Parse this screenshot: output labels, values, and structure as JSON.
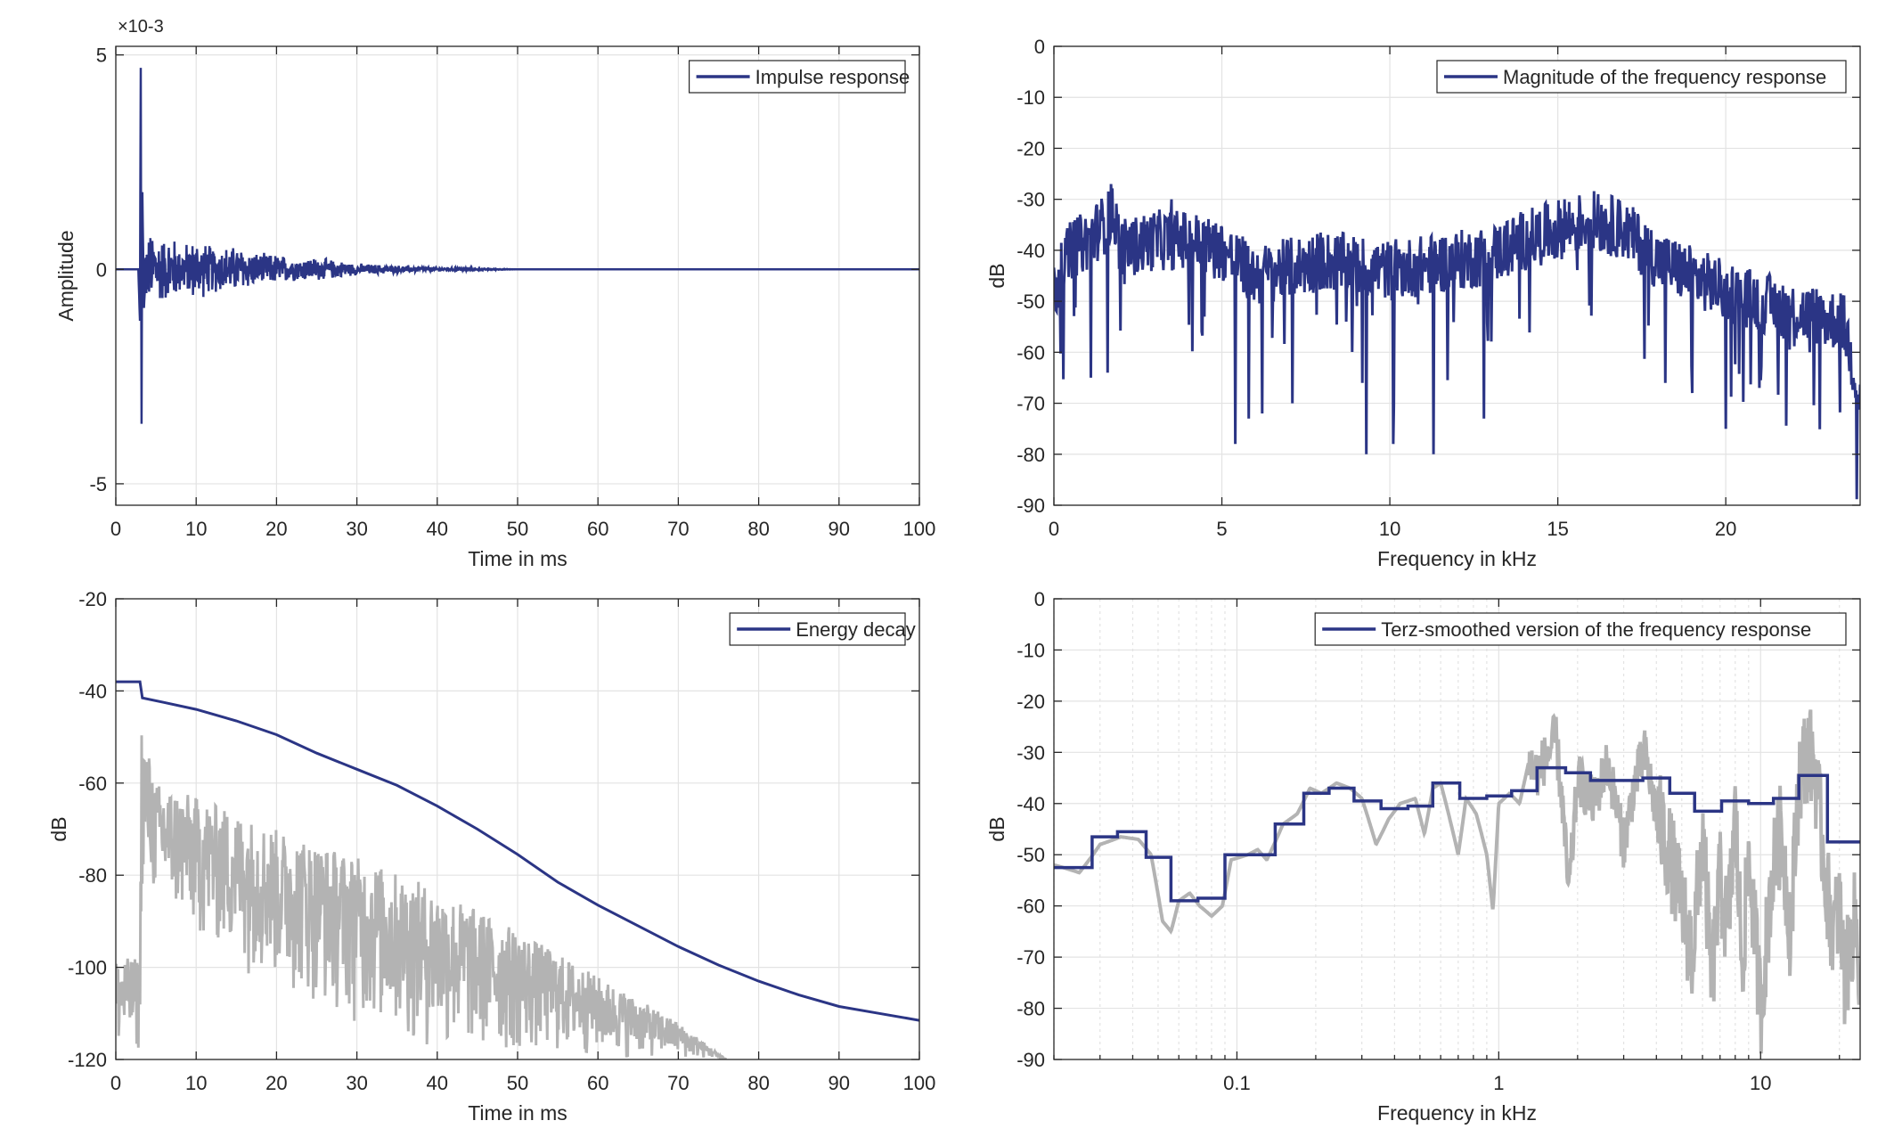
{
  "figure": {
    "colors": {
      "series": "#2b3585",
      "reference": "#b3b3b3",
      "grid": "#e3e3e3",
      "axis": "#262626"
    }
  },
  "chart_data": [
    {
      "type": "line",
      "xlabel": "Time in ms",
      "ylabel": "Amplitude",
      "xlim": [
        0,
        100
      ],
      "ylim": [
        -0.0055,
        0.0052
      ],
      "xticks": [
        "0",
        "10",
        "20",
        "30",
        "40",
        "50",
        "60",
        "70",
        "80",
        "90",
        "100"
      ],
      "yticks": [
        "-5",
        "0",
        "5"
      ],
      "yexponent": "×10-3",
      "grid": true,
      "legend": "top-right",
      "series": [
        {
          "name": "Impulse response",
          "note": "impulse arriving at ~3 ms, decaying oscillation",
          "keypoints": [
            [
              0,
              0
            ],
            [
              2.8,
              0
            ],
            [
              3.0,
              -0.0012
            ],
            [
              3.1,
              0.0047
            ],
            [
              3.2,
              -0.0036
            ],
            [
              3.3,
              0.0018
            ],
            [
              3.5,
              -0.0009
            ],
            [
              4,
              0.0009
            ],
            [
              5,
              -0.001
            ],
            [
              6,
              0.0008
            ],
            [
              7,
              -0.0009
            ],
            [
              8,
              0.0006
            ],
            [
              9,
              -0.0007
            ],
            [
              10,
              0.0008
            ],
            [
              12,
              -0.0006
            ],
            [
              15,
              0.0006
            ],
            [
              18,
              -0.0004
            ],
            [
              20,
              0.0004
            ],
            [
              22,
              -0.0003
            ],
            [
              25,
              0.0003
            ],
            [
              30,
              -0.00015
            ],
            [
              35,
              0.0001
            ],
            [
              40,
              5e-05
            ],
            [
              50,
              0
            ],
            [
              100,
              0
            ]
          ]
        }
      ]
    },
    {
      "type": "line",
      "xlabel": "Frequency in kHz",
      "ylabel": "dB",
      "xlim": [
        0,
        24
      ],
      "ylim": [
        -90,
        0
      ],
      "xticks": [
        "0",
        "5",
        "10",
        "15",
        "20"
      ],
      "yticks": [
        "0",
        "-10",
        "-20",
        "-30",
        "-40",
        "-50",
        "-60",
        "-70",
        "-80",
        "-90"
      ],
      "grid": true,
      "legend": "top-right",
      "series": [
        {
          "name": "Magnitude of the frequency response",
          "envelope": [
            [
              0,
              -48
            ],
            [
              0.5,
              -40
            ],
            [
              1,
              -38
            ],
            [
              1.8,
              -33
            ],
            [
              2,
              -40
            ],
            [
              3,
              -38
            ],
            [
              4,
              -38
            ],
            [
              5,
              -40
            ],
            [
              6,
              -45
            ],
            [
              8,
              -42
            ],
            [
              10,
              -44
            ],
            [
              12,
              -42
            ],
            [
              13,
              -41
            ],
            [
              14,
              -38
            ],
            [
              15,
              -36
            ],
            [
              16,
              -34
            ],
            [
              17,
              -36
            ],
            [
              18,
              -42
            ],
            [
              20,
              -48
            ],
            [
              22,
              -52
            ],
            [
              23.5,
              -54
            ],
            [
              24,
              -69
            ]
          ],
          "dips": [
            [
              1.1,
              -65
            ],
            [
              1.6,
              -64
            ],
            [
              5.4,
              -78
            ],
            [
              5.8,
              -73
            ],
            [
              6.2,
              -72
            ],
            [
              7.1,
              -70
            ],
            [
              9.3,
              -80
            ],
            [
              10.1,
              -78
            ],
            [
              11.3,
              -80
            ],
            [
              12.8,
              -73
            ],
            [
              18.2,
              -66
            ],
            [
              19.0,
              -68
            ],
            [
              20.0,
              -75
            ],
            [
              21.0,
              -67
            ],
            [
              22.5,
              -60
            ]
          ],
          "peaks": [
            [
              1.7,
              -27
            ],
            [
              3.5,
              -30
            ],
            [
              15.2,
              -30
            ],
            [
              16.2,
              -29
            ],
            [
              16.8,
              -30
            ]
          ]
        }
      ]
    },
    {
      "type": "line",
      "xlabel": "Time in ms",
      "ylabel": "dB",
      "xlim": [
        0,
        100
      ],
      "ylim": [
        -120,
        -20
      ],
      "xticks": [
        "0",
        "10",
        "20",
        "30",
        "40",
        "50",
        "60",
        "70",
        "80",
        "90",
        "100"
      ],
      "yticks": [
        "-20",
        "-40",
        "-60",
        "-80",
        "-100",
        "-120"
      ],
      "grid": true,
      "legend": "top-right",
      "series": [
        {
          "name": "Energy decay",
          "points": [
            [
              0,
              -38
            ],
            [
              3,
              -38
            ],
            [
              3.3,
              -41.5
            ],
            [
              6,
              -42.5
            ],
            [
              10,
              -44
            ],
            [
              15,
              -46.5
            ],
            [
              20,
              -49.5
            ],
            [
              25,
              -53.5
            ],
            [
              30,
              -57
            ],
            [
              35,
              -60.5
            ],
            [
              40,
              -65
            ],
            [
              45,
              -70
            ],
            [
              50,
              -75.5
            ],
            [
              55,
              -81.5
            ],
            [
              60,
              -86.5
            ],
            [
              65,
              -91
            ],
            [
              70,
              -95.5
            ],
            [
              75,
              -99.5
            ],
            [
              80,
              -103
            ],
            [
              85,
              -106
            ],
            [
              90,
              -108.5
            ],
            [
              95,
              -110
            ],
            [
              100,
              -111.5
            ]
          ]
        },
        {
          "role": "reference",
          "upper_envelope": [
            [
              0,
              -98
            ],
            [
              3,
              -98
            ],
            [
              3.2,
              -47
            ],
            [
              5,
              -60
            ],
            [
              10,
              -63
            ],
            [
              20,
              -70
            ],
            [
              30,
              -76
            ],
            [
              40,
              -83
            ],
            [
              50,
              -92
            ],
            [
              60,
              -102
            ],
            [
              70,
              -112
            ],
            [
              76,
              -120
            ]
          ],
          "lower_envelope": [
            [
              0,
              -120
            ],
            [
              3,
              -120
            ],
            [
              3.2,
              -85
            ],
            [
              10,
              -95
            ],
            [
              20,
              -105
            ],
            [
              30,
              -113
            ],
            [
              40,
              -120
            ],
            [
              76,
              -120
            ]
          ]
        }
      ]
    },
    {
      "type": "line",
      "xlabel": "Frequency in kHz",
      "ylabel": "dB",
      "xscale": "log",
      "xlim": [
        0.02,
        24
      ],
      "ylim": [
        -90,
        0
      ],
      "xticks": [
        "0.1",
        "1",
        "10"
      ],
      "yticks": [
        "0",
        "-10",
        "-20",
        "-30",
        "-40",
        "-50",
        "-60",
        "-70",
        "-80",
        "-90"
      ],
      "grid": true,
      "legend": "top-right",
      "series": [
        {
          "name": "Terz-smoothed version of the frequency response",
          "steps": [
            [
              0.02,
              0.028,
              -52.5
            ],
            [
              0.028,
              0.035,
              -46.5
            ],
            [
              0.035,
              0.045,
              -45.5
            ],
            [
              0.045,
              0.056,
              -50.5
            ],
            [
              0.056,
              0.071,
              -59
            ],
            [
              0.071,
              0.09,
              -58.5
            ],
            [
              0.09,
              0.14,
              -50
            ],
            [
              0.14,
              0.18,
              -44
            ],
            [
              0.18,
              0.225,
              -38
            ],
            [
              0.225,
              0.28,
              -37
            ],
            [
              0.28,
              0.355,
              -39.5
            ],
            [
              0.355,
              0.45,
              -41
            ],
            [
              0.45,
              0.56,
              -40.5
            ],
            [
              0.56,
              0.71,
              -36
            ],
            [
              0.71,
              0.9,
              -39
            ],
            [
              0.9,
              1.12,
              -38.5
            ],
            [
              1.12,
              1.4,
              -37.5
            ],
            [
              1.4,
              1.8,
              -33
            ],
            [
              1.8,
              2.24,
              -34
            ],
            [
              2.24,
              2.8,
              -35.5
            ],
            [
              2.8,
              3.55,
              -35.5
            ],
            [
              3.55,
              4.5,
              -35
            ],
            [
              4.5,
              5.6,
              -38
            ],
            [
              5.6,
              7.1,
              -41.5
            ],
            [
              7.1,
              9,
              -39.5
            ],
            [
              9,
              11.2,
              -40
            ],
            [
              11.2,
              14,
              -39
            ],
            [
              14,
              18,
              -34.5
            ],
            [
              18,
              24,
              -47.5
            ]
          ]
        },
        {
          "role": "reference",
          "points": [
            [
              0.02,
              -52
            ],
            [
              0.025,
              -53.5
            ],
            [
              0.03,
              -48
            ],
            [
              0.036,
              -46.5
            ],
            [
              0.042,
              -47
            ],
            [
              0.047,
              -50
            ],
            [
              0.052,
              -63
            ],
            [
              0.056,
              -65
            ],
            [
              0.06,
              -59
            ],
            [
              0.066,
              -57.5
            ],
            [
              0.072,
              -60
            ],
            [
              0.08,
              -62
            ],
            [
              0.088,
              -60
            ],
            [
              0.095,
              -51
            ],
            [
              0.11,
              -50
            ],
            [
              0.12,
              -49
            ],
            [
              0.13,
              -51
            ],
            [
              0.15,
              -44
            ],
            [
              0.17,
              -42
            ],
            [
              0.19,
              -37
            ],
            [
              0.21,
              -38
            ],
            [
              0.24,
              -36
            ],
            [
              0.27,
              -37
            ],
            [
              0.3,
              -39
            ],
            [
              0.34,
              -48
            ],
            [
              0.38,
              -43
            ],
            [
              0.42,
              -40
            ],
            [
              0.48,
              -39
            ],
            [
              0.52,
              -46
            ],
            [
              0.56,
              -37
            ],
            [
              0.6,
              -36
            ],
            [
              0.65,
              -43
            ],
            [
              0.7,
              -50
            ],
            [
              0.75,
              -39
            ],
            [
              0.82,
              -42
            ],
            [
              0.9,
              -50
            ],
            [
              0.95,
              -61
            ],
            [
              1.0,
              -40
            ],
            [
              1.1,
              -38
            ],
            [
              1.2,
              -40
            ],
            [
              1.3,
              -32
            ],
            [
              1.4,
              -34
            ],
            [
              1.55,
              -30
            ],
            [
              1.65,
              -27
            ],
            [
              1.75,
              -40
            ],
            [
              1.85,
              -58
            ],
            [
              2.0,
              -35
            ],
            [
              2.3,
              -40
            ],
            [
              2.6,
              -32
            ],
            [
              3.0,
              -48
            ],
            [
              3.3,
              -36
            ],
            [
              3.6,
              -30
            ],
            [
              4.0,
              -42
            ],
            [
              4.5,
              -50
            ],
            [
              5.0,
              -60
            ],
            [
              5.5,
              -70
            ],
            [
              6.0,
              -45
            ],
            [
              6.5,
              -75
            ],
            [
              7.0,
              -55
            ],
            [
              7.5,
              -65
            ],
            [
              8.0,
              -42
            ],
            [
              8.5,
              -72
            ],
            [
              9.0,
              -50
            ],
            [
              10,
              -80
            ],
            [
              11,
              -55
            ],
            [
              12,
              -45
            ],
            [
              13,
              -65
            ],
            [
              14,
              -35
            ],
            [
              15,
              -30
            ],
            [
              16,
              -32
            ],
            [
              17,
              -45
            ],
            [
              18,
              -58
            ],
            [
              19,
              -65
            ],
            [
              20,
              -60
            ],
            [
              21,
              -75
            ],
            [
              22,
              -68
            ],
            [
              23,
              -62
            ],
            [
              24,
              -75
            ]
          ]
        }
      ]
    }
  ]
}
